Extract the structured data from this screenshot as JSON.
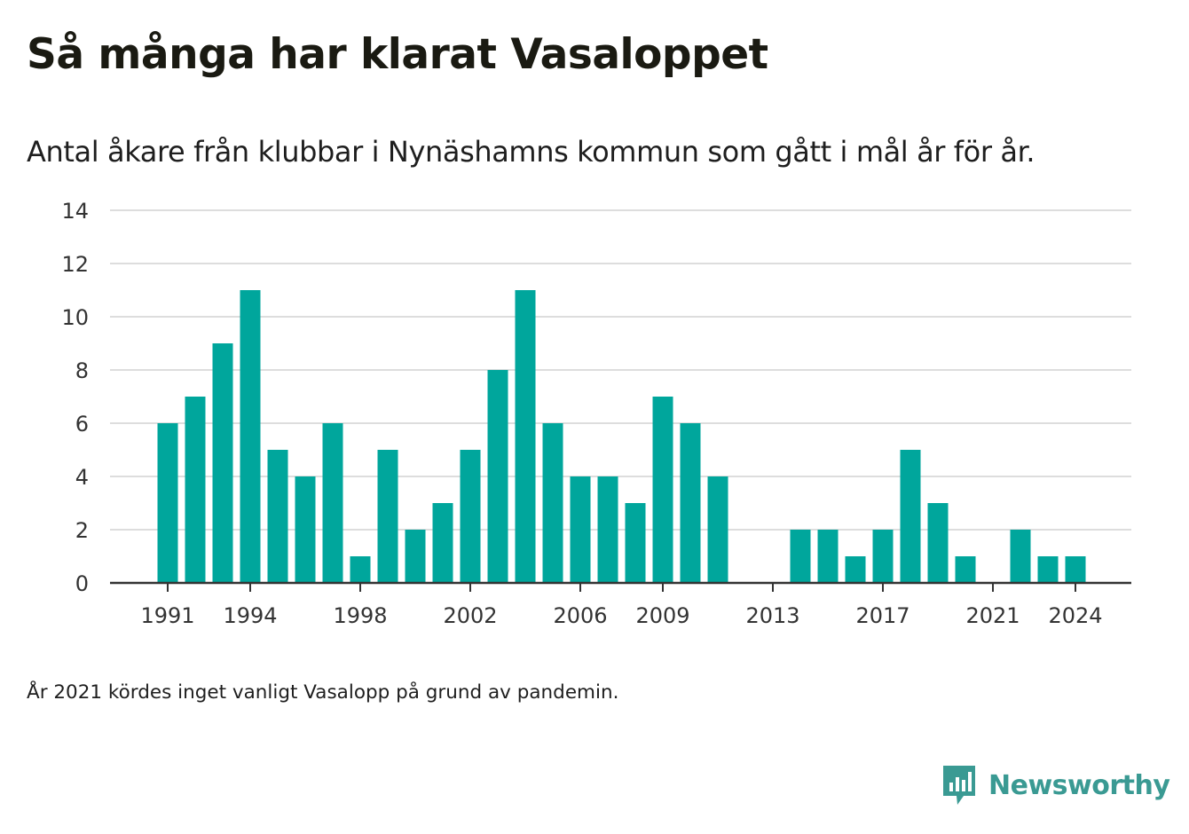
{
  "title": "Så många har klarat Vasaloppet",
  "subtitle": "Antal åkare från klubbar i Nynäshamns kommun som gått i mål år för år.",
  "footnote": "År 2021 kördes inget vanligt Vasalopp på grund av pandemin.",
  "logo": {
    "text": "Newsworthy",
    "icon": "newsworthy-logo-icon",
    "color": "#3a9a93"
  },
  "colors": {
    "bar": "#00a69c",
    "grid": "#dddddd",
    "axis": "#333333",
    "tick_text": "#333333"
  },
  "chart_data": {
    "type": "bar",
    "categories": [
      1991,
      1992,
      1993,
      1994,
      1995,
      1996,
      1997,
      1998,
      1999,
      2000,
      2001,
      2002,
      2003,
      2004,
      2005,
      2006,
      2007,
      2008,
      2009,
      2010,
      2011,
      2012,
      2013,
      2014,
      2015,
      2016,
      2017,
      2018,
      2019,
      2020,
      2021,
      2022,
      2023,
      2024
    ],
    "values": [
      6,
      7,
      9,
      11,
      5,
      4,
      6,
      1,
      5,
      2,
      3,
      5,
      8,
      11,
      6,
      4,
      4,
      3,
      7,
      6,
      4,
      0,
      0,
      2,
      2,
      1,
      2,
      5,
      3,
      1,
      0,
      2,
      1,
      1
    ],
    "x_tick_labels": [
      "1991",
      "1994",
      "1998",
      "2002",
      "2006",
      "2009",
      "2013",
      "2017",
      "2021",
      "2024"
    ],
    "y_ticks": [
      0,
      2,
      4,
      6,
      8,
      10,
      12,
      14
    ],
    "ylim": [
      0,
      14
    ],
    "xlabel": "",
    "ylabel": "",
    "grid": true,
    "legend": false
  }
}
